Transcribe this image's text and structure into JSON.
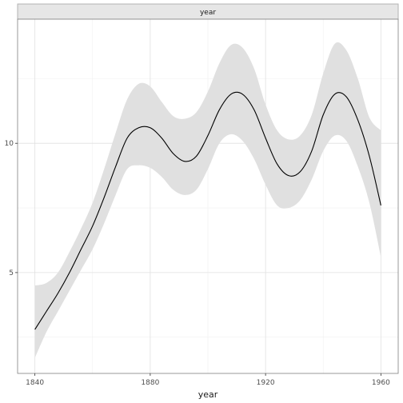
{
  "chart_data": {
    "type": "line",
    "facet_label": "year",
    "xlabel": "year",
    "ylabel": "",
    "xlim": [
      1834,
      1966
    ],
    "ylim": [
      1.1,
      14.8
    ],
    "x_ticks": [
      1840,
      1880,
      1920,
      1960
    ],
    "y_ticks": [
      5,
      10
    ],
    "grid": true,
    "legend": "none",
    "colors": {
      "line": "#000000",
      "ribbon": "#e0e0e0",
      "strip": "#e6e6e6",
      "strip_border": "#b3b3b3",
      "grid_major": "#e0e0e0",
      "grid_minor": "#f0f0f0",
      "panel_border": "#7f7f7f"
    },
    "series": [
      {
        "x": [
          1840,
          1844,
          1848,
          1852,
          1856,
          1860,
          1864,
          1868,
          1872,
          1876,
          1880,
          1884,
          1888,
          1892,
          1896,
          1900,
          1904,
          1908,
          1912,
          1916,
          1920,
          1924,
          1928,
          1932,
          1936,
          1940,
          1944,
          1948,
          1952,
          1956,
          1960
        ],
        "y": [
          2.8,
          3.5,
          4.2,
          5.0,
          5.9,
          6.8,
          7.9,
          9.1,
          10.2,
          10.6,
          10.6,
          10.2,
          9.6,
          9.3,
          9.5,
          10.3,
          11.3,
          11.9,
          11.9,
          11.3,
          10.2,
          9.2,
          8.75,
          8.9,
          9.7,
          11.1,
          11.9,
          11.8,
          10.9,
          9.5,
          7.6
        ],
        "lower": [
          1.7,
          2.7,
          3.5,
          4.3,
          5.1,
          5.9,
          6.9,
          8.0,
          9.0,
          9.15,
          9.05,
          8.7,
          8.2,
          8.0,
          8.2,
          9.0,
          10.0,
          10.35,
          10.1,
          9.4,
          8.4,
          7.6,
          7.5,
          7.8,
          8.6,
          9.7,
          10.3,
          10.1,
          9.1,
          7.7,
          5.6
        ],
        "upper": [
          4.5,
          4.6,
          5.0,
          5.8,
          6.7,
          7.7,
          9.0,
          10.4,
          11.7,
          12.3,
          12.2,
          11.6,
          11.05,
          10.95,
          11.2,
          12.0,
          13.1,
          13.8,
          13.7,
          12.9,
          11.5,
          10.5,
          10.15,
          10.3,
          11.1,
          12.7,
          13.85,
          13.6,
          12.5,
          11.0,
          10.5
        ]
      }
    ]
  }
}
